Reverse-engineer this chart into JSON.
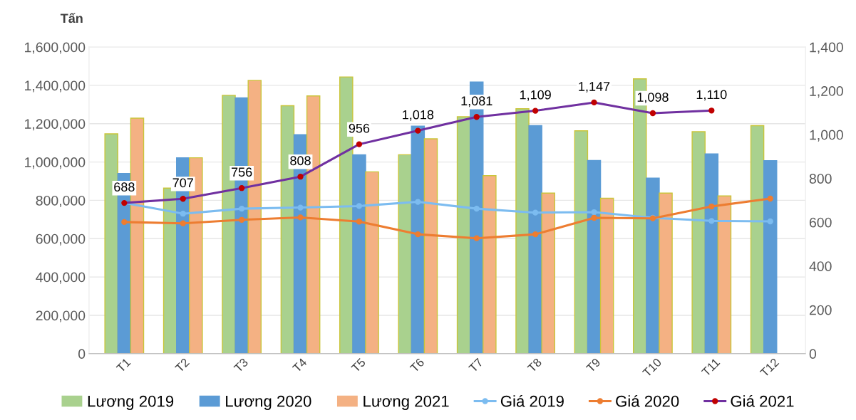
{
  "chart_data": {
    "type": "bar",
    "ylabel": "Tấn",
    "categories": [
      "T1",
      "T2",
      "T3",
      "T4",
      "T5",
      "T6",
      "T7",
      "T8",
      "T9",
      "T10",
      "T11",
      "T12"
    ],
    "series": [
      {
        "name": "Lương 2019",
        "color": "#a9d18e",
        "values": [
          1147000,
          864000,
          1348000,
          1294000,
          1444000,
          1038000,
          1236000,
          1278000,
          1163000,
          1434000,
          1158000,
          1190000
        ]
      },
      {
        "name": "Lương 2020",
        "color": "#5b9bd5",
        "values": [
          940000,
          1022000,
          1335000,
          1143000,
          1038000,
          1187000,
          1418000,
          1190000,
          1008000,
          916000,
          1042000,
          1007000
        ]
      },
      {
        "name": "Lương 2021",
        "color": "#f4b183",
        "values": [
          1229000,
          1022000,
          1426000,
          1345000,
          949000,
          1121000,
          929000,
          838000,
          811000,
          838000,
          823000,
          null
        ]
      },
      {
        "name": "Giá 2019",
        "type": "line",
        "axis": "y2",
        "color": "#7cbcf0",
        "values": [
          688,
          639,
          662,
          667,
          674,
          693,
          662,
          644,
          646,
          620,
          606,
          604
        ]
      },
      {
        "name": "Giá 2020",
        "type": "line",
        "axis": "y2",
        "color": "#ed7d31",
        "values": [
          601,
          595,
          611,
          622,
          603,
          545,
          527,
          545,
          620,
          618,
          672,
          708
        ]
      },
      {
        "name": "Giá 2021",
        "type": "line",
        "axis": "y2",
        "color": "#7030a0",
        "values": [
          688,
          707,
          756,
          808,
          956,
          1018,
          1081,
          1109,
          1147,
          1098,
          1110,
          null
        ],
        "value_labels": [
          "688",
          "707",
          "756",
          "808",
          "956",
          "1,018",
          "1,081",
          "1,109",
          "1,147",
          "1,098",
          "1,110",
          null
        ]
      }
    ],
    "ylim": [
      0,
      1600000
    ],
    "yticks": [
      0,
      {
        "value": 200000,
        "label": "200,000"
      },
      {
        "value": 400000,
        "label": "400,000"
      },
      {
        "value": 600000,
        "label": "600,000"
      },
      {
        "value": 800000,
        "label": "800,000"
      },
      {
        "value": 1000000,
        "label": "1,000,000"
      },
      {
        "value": 1200000,
        "label": "1,200,000"
      },
      {
        "value": 1400000,
        "label": "1,400,000"
      },
      {
        "value": 1600000,
        "label": "1,600,000"
      }
    ],
    "y2lim": [
      0,
      1400
    ],
    "y2ticks": [
      0,
      200,
      400,
      600,
      800,
      {
        "value": 1000,
        "label": "1,000"
      },
      {
        "value": 1200,
        "label": "1,200"
      },
      {
        "value": 1400,
        "label": "1,400"
      }
    ],
    "grid": "y",
    "legend": "bottom",
    "marker": "circle"
  }
}
